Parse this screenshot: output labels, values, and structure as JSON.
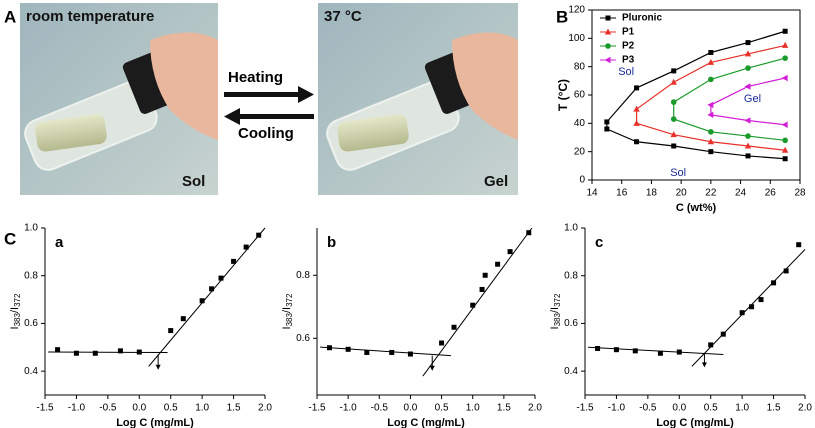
{
  "panel_labels": [
    "A",
    "B",
    "C"
  ],
  "panel_a": {
    "left_caption": "room temperature",
    "left_state": "Sol",
    "right_caption": "37 °C",
    "right_state": "Gel",
    "heating": "Heating",
    "cooling": "Cooling"
  },
  "chart_data": [
    {
      "type": "line",
      "xlabel": "C (wt%)",
      "ylabel": "T (°C)",
      "frame": true,
      "xlim": [
        14,
        28
      ],
      "xticks": [
        14,
        16,
        18,
        20,
        22,
        24,
        26,
        28
      ],
      "ylim": [
        0,
        120
      ],
      "yticks": [
        0,
        20,
        40,
        60,
        80,
        100,
        120
      ],
      "legend": "top-left",
      "series": [
        {
          "name": "Pluronic",
          "color": "#000000",
          "marker": "square",
          "x": [
            27,
            24.5,
            22,
            19.5,
            17,
            15,
            15,
            17,
            19.5,
            22,
            24.5,
            27
          ],
          "values": [
            15,
            17,
            20,
            24,
            27,
            36,
            41,
            65,
            77,
            90,
            97,
            105
          ]
        },
        {
          "name": "P1",
          "color": "#e8312a",
          "marker": "triangle",
          "x": [
            27,
            24.5,
            22,
            19.5,
            17,
            17,
            19.5,
            22,
            24.5,
            27
          ],
          "values": [
            21,
            24,
            27,
            32,
            40,
            50,
            69,
            83,
            89,
            95
          ]
        },
        {
          "name": "P2",
          "color": "#1a9a2a",
          "marker": "circle",
          "x": [
            27,
            24.5,
            22,
            19.5,
            19.5,
            22,
            24.5,
            27
          ],
          "values": [
            28,
            31,
            34,
            43,
            55,
            71,
            79,
            86
          ]
        },
        {
          "name": "P3",
          "color": "#d21fd6",
          "marker": "triangle-left",
          "x": [
            27,
            24.5,
            22,
            22,
            24.5,
            27
          ],
          "values": [
            39,
            42,
            46,
            53,
            66,
            72
          ]
        }
      ],
      "annotations": [
        {
          "text": "Sol",
          "x": 16.3,
          "y": 76
        },
        {
          "text": "Sol",
          "x": 19.8,
          "y": 5
        },
        {
          "text": "Gel",
          "x": 24.8,
          "y": 57
        }
      ]
    },
    {
      "type": "scatter",
      "panel_label": "a",
      "xlabel": "Log C (mg/mL)",
      "ylabel": [
        "I",
        "383",
        "/I",
        "372"
      ],
      "xlim": [
        -1.5,
        2.0
      ],
      "xticks": [
        -1.5,
        {
          "value": -1,
          "label": "-1.0"
        },
        -0.5,
        {
          "value": 0,
          "label": "0.0"
        },
        0.5,
        {
          "value": 1,
          "label": "1.0"
        },
        1.5,
        {
          "value": 2,
          "label": "2.0"
        }
      ],
      "ylim": [
        0.3,
        1.0
      ],
      "yticks": [
        0.4,
        0.6,
        0.8,
        {
          "value": 1,
          "label": "1.0"
        }
      ],
      "x": [
        -1.3,
        -1.0,
        -0.7,
        -0.3,
        0.0,
        0.5,
        0.7,
        1.0,
        1.15,
        1.3,
        1.5,
        1.7,
        1.9
      ],
      "values": [
        0.49,
        0.475,
        0.475,
        0.485,
        0.48,
        0.57,
        0.62,
        0.695,
        0.745,
        0.79,
        0.86,
        0.92,
        0.97
      ],
      "fit_lines": [
        {
          "x": [
            -1.45,
            0.45
          ],
          "values": [
            0.48,
            0.478
          ]
        },
        {
          "x": [
            0.15,
            2.0
          ],
          "values": [
            0.42,
            1.0
          ]
        }
      ],
      "arrow": {
        "x": 0.3,
        "values": [
          0.47,
          0.41
        ]
      }
    },
    {
      "type": "scatter",
      "panel_label": "b",
      "xlabel": "Log C (mg/mL)",
      "ylabel": [
        "I",
        "383",
        "/I",
        "372"
      ],
      "xlim": [
        -1.5,
        2.0
      ],
      "xticks": [
        -1.5,
        {
          "value": -1,
          "label": "-1.0"
        },
        -0.5,
        {
          "value": 0,
          "label": "0.0"
        },
        0.5,
        {
          "value": 1,
          "label": "1.0"
        },
        1.5,
        {
          "value": 2,
          "label": "2.0"
        }
      ],
      "ylim": [
        0.42,
        0.95
      ],
      "yticks": [
        0.6,
        0.8
      ],
      "x": [
        -1.3,
        -1.0,
        -0.7,
        -0.3,
        0.0,
        0.5,
        0.7,
        1.0,
        1.15,
        1.2,
        1.4,
        1.6,
        1.9
      ],
      "values": [
        0.57,
        0.565,
        0.555,
        0.555,
        0.55,
        0.585,
        0.635,
        0.705,
        0.755,
        0.8,
        0.835,
        0.875,
        0.935
      ],
      "fit_lines": [
        {
          "x": [
            -1.45,
            0.65
          ],
          "values": [
            0.572,
            0.545
          ]
        },
        {
          "x": [
            0.2,
            1.95
          ],
          "values": [
            0.48,
            0.95
          ]
        }
      ],
      "arrow": {
        "x": 0.35,
        "values": [
          0.545,
          0.5
        ]
      }
    },
    {
      "type": "scatter",
      "panel_label": "c",
      "xlabel": "Log C (mg/mL)",
      "ylabel": [
        "I",
        "383",
        "/I",
        "372"
      ],
      "xlim": [
        -1.5,
        2.0
      ],
      "xticks": [
        -1.5,
        {
          "value": -1,
          "label": "-1.0"
        },
        -0.5,
        {
          "value": 0,
          "label": "0.0"
        },
        0.5,
        {
          "value": 1,
          "label": "1.0"
        },
        1.5,
        {
          "value": 2,
          "label": "2.0"
        }
      ],
      "ylim": [
        0.3,
        1.0
      ],
      "yticks": [
        0.4,
        0.6,
        0.8,
        {
          "value": 1,
          "label": "1.0"
        }
      ],
      "x": [
        -1.3,
        -1.0,
        -0.7,
        -0.3,
        0.0,
        0.5,
        0.7,
        1.0,
        1.15,
        1.3,
        1.5,
        1.7,
        1.9
      ],
      "values": [
        0.495,
        0.49,
        0.485,
        0.475,
        0.48,
        0.51,
        0.555,
        0.645,
        0.67,
        0.7,
        0.77,
        0.82,
        0.93
      ],
      "fit_lines": [
        {
          "x": [
            -1.45,
            0.7
          ],
          "values": [
            0.5,
            0.47
          ]
        },
        {
          "x": [
            0.2,
            2.0
          ],
          "values": [
            0.42,
            0.91
          ]
        }
      ],
      "arrow": {
        "x": 0.4,
        "values": [
          0.475,
          0.42
        ]
      }
    }
  ]
}
